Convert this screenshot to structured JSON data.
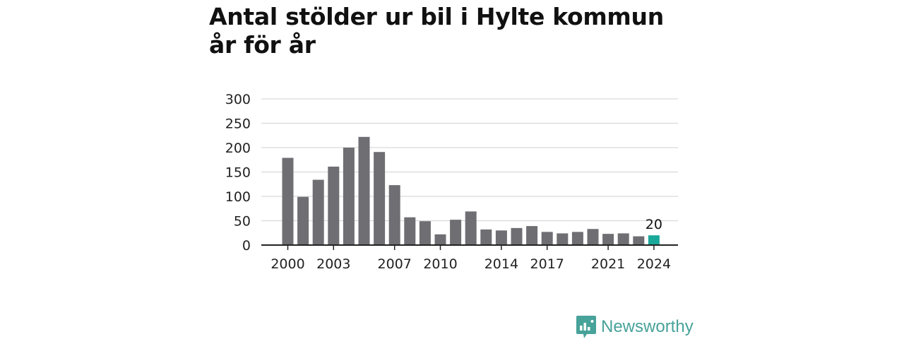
{
  "title": "Antal stölder ur bil i Hylte kommun år för år",
  "brand": {
    "name": "Newsworthy",
    "logo_icon": "newsworthy-logo-icon"
  },
  "colors": {
    "bar": "#6f6e73",
    "highlight": "#1aa89a",
    "grid": "#d9d9d9",
    "axis": "#222222",
    "brand": "#47a29a"
  },
  "chart_data": {
    "type": "bar",
    "title": "Antal stölder ur bil i Hylte kommun år för år",
    "xlabel": "",
    "ylabel": "",
    "categories": [
      "2000",
      "2001",
      "2002",
      "2003",
      "2004",
      "2005",
      "2006",
      "2007",
      "2008",
      "2009",
      "2010",
      "2011",
      "2012",
      "2013",
      "2014",
      "2015",
      "2016",
      "2017",
      "2018",
      "2019",
      "2020",
      "2021",
      "2022",
      "2023",
      "2024"
    ],
    "values": [
      179,
      99,
      134,
      161,
      200,
      222,
      191,
      123,
      57,
      49,
      22,
      52,
      69,
      32,
      30,
      35,
      39,
      27,
      24,
      27,
      33,
      23,
      24,
      18,
      20
    ],
    "x_tick_labels": [
      "2000",
      "2003",
      "2007",
      "2010",
      "2014",
      "2017",
      "2021",
      "2024"
    ],
    "y_ticks": [
      0,
      50,
      100,
      150,
      200,
      250,
      300
    ],
    "ylim": [
      0,
      300
    ],
    "grid": true,
    "highlight": {
      "category": "2024",
      "label": "20"
    }
  }
}
